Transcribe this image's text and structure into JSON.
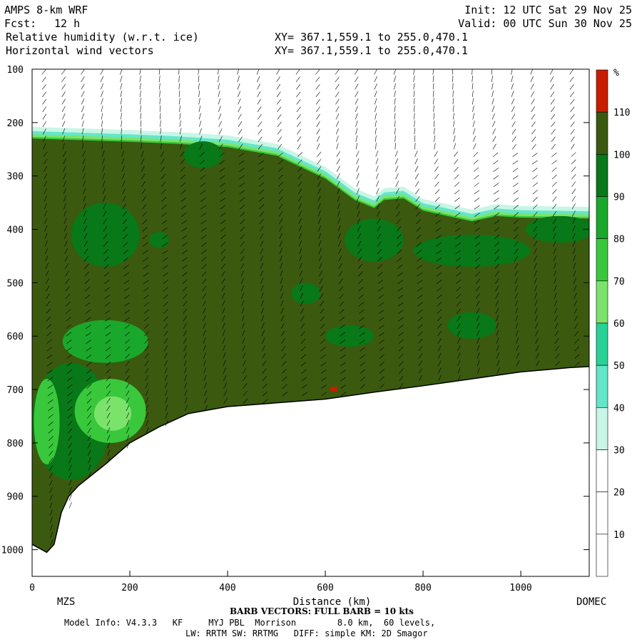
{
  "header": {
    "title": "AMPS 8-km WRF",
    "init": "Init: 12 UTC Sat 29 Nov 25",
    "fcst_label": "Fcst:",
    "fcst_value": "12 h",
    "valid": "Valid: 00 UTC Sun 30 Nov 25",
    "field1": "Relative humidity (w.r.t. ice)",
    "field2": "Horizontal wind vectors",
    "xy1": "XY= 367.1,559.1 to 255.0,470.1",
    "xy2": "XY= 367.1,559.1 to 255.0,470.1"
  },
  "chart_data": {
    "type": "heatmap",
    "xlabel": "Distance (km)",
    "x_ticks": [
      0,
      200,
      400,
      600,
      800,
      1000
    ],
    "xlim": [
      0,
      1140
    ],
    "x_end_labels": {
      "left": "MZS",
      "right": "DOMEC"
    },
    "y_ticks": [
      100,
      200,
      300,
      400,
      500,
      600,
      700,
      800,
      900,
      1000
    ],
    "ylim": [
      100,
      1050
    ],
    "y_inverted": true,
    "colorbar": {
      "unit": "%",
      "levels": [
        10,
        20,
        30,
        40,
        50,
        60,
        70,
        80,
        90,
        100,
        110
      ],
      "colors": [
        "#ffffff",
        "#ffffff",
        "#ffffff",
        "#c8f5e6",
        "#64e6c8",
        "#28d296",
        "#7be36b",
        "#39c83c",
        "#19a82b",
        "#087818",
        "#3b5a0f",
        "#c81e00"
      ]
    },
    "terrain_surface": [
      {
        "x": 0,
        "y": 990
      },
      {
        "x": 30,
        "y": 1005
      },
      {
        "x": 45,
        "y": 990
      },
      {
        "x": 60,
        "y": 930
      },
      {
        "x": 75,
        "y": 900
      },
      {
        "x": 95,
        "y": 880
      },
      {
        "x": 150,
        "y": 840
      },
      {
        "x": 200,
        "y": 800
      },
      {
        "x": 260,
        "y": 770
      },
      {
        "x": 320,
        "y": 745
      },
      {
        "x": 400,
        "y": 732
      },
      {
        "x": 500,
        "y": 725
      },
      {
        "x": 600,
        "y": 718
      },
      {
        "x": 700,
        "y": 705
      },
      {
        "x": 800,
        "y": 693
      },
      {
        "x": 900,
        "y": 680
      },
      {
        "x": 1000,
        "y": 667
      },
      {
        "x": 1100,
        "y": 659
      },
      {
        "x": 1140,
        "y": 657
      }
    ],
    "moist_layer_top": [
      {
        "x": 0,
        "y": 230
      },
      {
        "x": 100,
        "y": 233
      },
      {
        "x": 200,
        "y": 236
      },
      {
        "x": 300,
        "y": 240
      },
      {
        "x": 400,
        "y": 246
      },
      {
        "x": 500,
        "y": 262
      },
      {
        "x": 600,
        "y": 305
      },
      {
        "x": 660,
        "y": 345
      },
      {
        "x": 700,
        "y": 360
      },
      {
        "x": 720,
        "y": 345
      },
      {
        "x": 760,
        "y": 342
      },
      {
        "x": 800,
        "y": 365
      },
      {
        "x": 900,
        "y": 385
      },
      {
        "x": 950,
        "y": 375
      },
      {
        "x": 1000,
        "y": 378
      },
      {
        "x": 1140,
        "y": 380
      }
    ]
  },
  "footer": {
    "barb_note": "BARB VECTORS: FULL BARB = 10 kts",
    "model_info": "Model Info: V4.3.3   KF     MYJ PBL  Morrison        8.0 km,  60 levels,",
    "physics": "LW: RRTM SW: RRTMG   DIFF: simple KM: 2D Smagor"
  }
}
